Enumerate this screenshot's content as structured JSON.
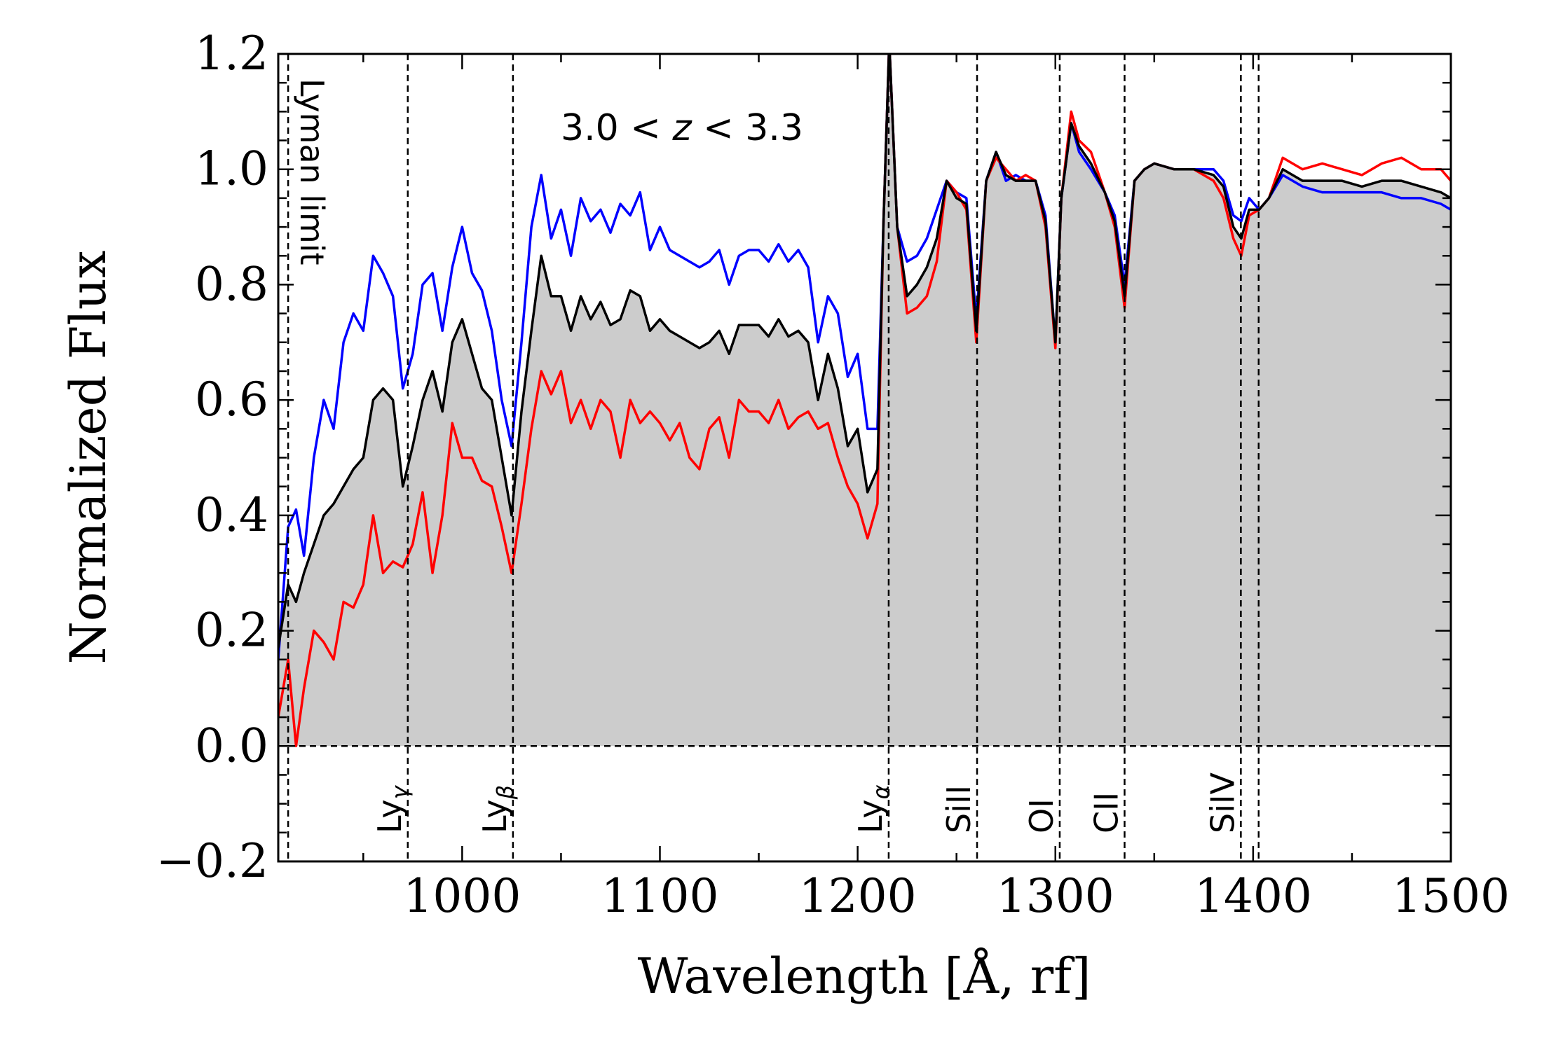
{
  "chart_data": {
    "type": "line",
    "xlabel": "Wavelength [Å, rf]",
    "ylabel": "Normalized Flux",
    "xlim": [
      907,
      1500
    ],
    "ylim": [
      -0.2,
      1.2
    ],
    "xticks": [
      1000,
      1100,
      1200,
      1300,
      1400,
      1500
    ],
    "yticks": [
      -0.2,
      0.0,
      0.2,
      0.4,
      0.6,
      0.8,
      1.0,
      1.2
    ],
    "xtick_labels": [
      "1000",
      "1100",
      "1200",
      "1300",
      "1400",
      "1500"
    ],
    "ytick_labels": [
      "−0.2",
      "0.0",
      "0.2",
      "0.4",
      "0.6",
      "0.8",
      "1.0",
      "1.2"
    ],
    "annotation": {
      "text_pre": "3.0 < ",
      "text_var": "z",
      "text_post": " < 3.3"
    },
    "grid": false,
    "fill_color": "#cccccc",
    "zero_line": 0.0,
    "lines": [
      {
        "x": 912,
        "label": "Lyman limit",
        "sub": ""
      },
      {
        "x": 972.5,
        "label": "Ly",
        "sub": "γ"
      },
      {
        "x": 1025.7,
        "label": "Ly",
        "sub": "β"
      },
      {
        "x": 1215.7,
        "label": "Ly",
        "sub": "α"
      },
      {
        "x": 1260.4,
        "label": "SiII",
        "sub": ""
      },
      {
        "x": 1302.2,
        "label": "OI",
        "sub": ""
      },
      {
        "x": 1335.0,
        "label": "CII",
        "sub": ""
      },
      {
        "x": 1393.8,
        "label": "SiIV",
        "sub": ""
      },
      {
        "x": 1402.8,
        "label": "",
        "sub": ""
      }
    ],
    "series": [
      {
        "color": "#0000ff",
        "x": [
          907,
          912,
          916,
          920,
          925,
          930,
          935,
          940,
          945,
          950,
          955,
          960,
          965,
          970,
          975,
          980,
          985,
          990,
          995,
          1000,
          1005,
          1010,
          1015,
          1020,
          1025,
          1030,
          1035,
          1040,
          1045,
          1050,
          1055,
          1060,
          1065,
          1070,
          1075,
          1080,
          1085,
          1090,
          1095,
          1100,
          1105,
          1110,
          1115,
          1120,
          1125,
          1130,
          1135,
          1140,
          1145,
          1150,
          1155,
          1160,
          1165,
          1170,
          1175,
          1180,
          1185,
          1190,
          1195,
          1200,
          1205,
          1210,
          1213,
          1216,
          1220,
          1225,
          1230,
          1235,
          1240,
          1245,
          1250,
          1255,
          1260,
          1265,
          1270,
          1275,
          1280,
          1285,
          1290,
          1295,
          1300,
          1303,
          1308,
          1312,
          1318,
          1325,
          1330,
          1335,
          1340,
          1345,
          1350,
          1360,
          1370,
          1380,
          1385,
          1390,
          1394,
          1398,
          1403,
          1408,
          1415,
          1425,
          1435,
          1445,
          1455,
          1465,
          1475,
          1485,
          1495,
          1500
        ],
        "y": [
          0.15,
          0.38,
          0.41,
          0.33,
          0.5,
          0.6,
          0.55,
          0.7,
          0.75,
          0.72,
          0.85,
          0.82,
          0.78,
          0.62,
          0.68,
          0.8,
          0.82,
          0.72,
          0.83,
          0.9,
          0.82,
          0.79,
          0.72,
          0.6,
          0.52,
          0.7,
          0.9,
          0.99,
          0.88,
          0.93,
          0.85,
          0.95,
          0.91,
          0.93,
          0.89,
          0.94,
          0.92,
          0.96,
          0.86,
          0.9,
          0.86,
          0.85,
          0.84,
          0.83,
          0.84,
          0.86,
          0.8,
          0.85,
          0.86,
          0.86,
          0.84,
          0.87,
          0.84,
          0.86,
          0.83,
          0.7,
          0.78,
          0.75,
          0.64,
          0.68,
          0.55,
          0.55,
          0.9,
          1.22,
          0.9,
          0.84,
          0.85,
          0.88,
          0.93,
          0.98,
          0.96,
          0.95,
          0.74,
          0.98,
          1.03,
          0.98,
          0.99,
          0.98,
          0.98,
          0.92,
          0.7,
          0.95,
          1.08,
          1.03,
          1.0,
          0.96,
          0.92,
          0.8,
          0.98,
          1.0,
          1.01,
          1.0,
          1.0,
          1.0,
          0.98,
          0.92,
          0.91,
          0.95,
          0.93,
          0.95,
          0.99,
          0.97,
          0.96,
          0.96,
          0.96,
          0.96,
          0.95,
          0.95,
          0.94,
          0.93
        ]
      },
      {
        "color": "#ff0000",
        "x": [
          907,
          912,
          916,
          920,
          925,
          930,
          935,
          940,
          945,
          950,
          955,
          960,
          965,
          970,
          975,
          980,
          985,
          990,
          995,
          1000,
          1005,
          1010,
          1015,
          1020,
          1025,
          1030,
          1035,
          1040,
          1045,
          1050,
          1055,
          1060,
          1065,
          1070,
          1075,
          1080,
          1085,
          1090,
          1095,
          1100,
          1105,
          1110,
          1115,
          1120,
          1125,
          1130,
          1135,
          1140,
          1145,
          1150,
          1155,
          1160,
          1165,
          1170,
          1175,
          1180,
          1185,
          1190,
          1195,
          1200,
          1205,
          1210,
          1213,
          1216,
          1220,
          1225,
          1230,
          1235,
          1240,
          1245,
          1250,
          1255,
          1260,
          1265,
          1270,
          1275,
          1280,
          1285,
          1290,
          1295,
          1300,
          1303,
          1308,
          1312,
          1318,
          1325,
          1330,
          1335,
          1340,
          1345,
          1350,
          1360,
          1370,
          1380,
          1385,
          1390,
          1394,
          1398,
          1403,
          1408,
          1415,
          1425,
          1435,
          1445,
          1455,
          1465,
          1475,
          1485,
          1495,
          1500
        ],
        "y": [
          0.05,
          0.15,
          0.0,
          0.1,
          0.2,
          0.18,
          0.15,
          0.25,
          0.24,
          0.28,
          0.4,
          0.3,
          0.32,
          0.31,
          0.35,
          0.44,
          0.3,
          0.4,
          0.56,
          0.5,
          0.5,
          0.46,
          0.45,
          0.38,
          0.3,
          0.42,
          0.55,
          0.65,
          0.61,
          0.65,
          0.56,
          0.6,
          0.55,
          0.6,
          0.58,
          0.5,
          0.6,
          0.56,
          0.58,
          0.56,
          0.53,
          0.56,
          0.5,
          0.48,
          0.55,
          0.57,
          0.5,
          0.6,
          0.58,
          0.58,
          0.56,
          0.6,
          0.55,
          0.57,
          0.58,
          0.55,
          0.56,
          0.5,
          0.45,
          0.42,
          0.36,
          0.42,
          0.9,
          1.22,
          0.9,
          0.75,
          0.76,
          0.78,
          0.84,
          0.98,
          0.96,
          0.93,
          0.7,
          0.98,
          1.02,
          1.0,
          0.98,
          0.99,
          0.98,
          0.9,
          0.69,
          0.95,
          1.1,
          1.05,
          1.03,
          0.96,
          0.9,
          0.76,
          0.98,
          1.0,
          1.01,
          1.0,
          1.0,
          0.98,
          0.95,
          0.88,
          0.85,
          0.92,
          0.93,
          0.95,
          1.02,
          1.0,
          1.01,
          1.0,
          0.99,
          1.01,
          1.02,
          1.0,
          1.0,
          0.98
        ]
      },
      {
        "color": "#000000",
        "x": [
          907,
          912,
          916,
          920,
          925,
          930,
          935,
          940,
          945,
          950,
          955,
          960,
          965,
          970,
          975,
          980,
          985,
          990,
          995,
          1000,
          1005,
          1010,
          1015,
          1020,
          1025,
          1030,
          1035,
          1040,
          1045,
          1050,
          1055,
          1060,
          1065,
          1070,
          1075,
          1080,
          1085,
          1090,
          1095,
          1100,
          1105,
          1110,
          1115,
          1120,
          1125,
          1130,
          1135,
          1140,
          1145,
          1150,
          1155,
          1160,
          1165,
          1170,
          1175,
          1180,
          1185,
          1190,
          1195,
          1200,
          1205,
          1210,
          1213,
          1216,
          1220,
          1225,
          1230,
          1235,
          1240,
          1245,
          1250,
          1255,
          1260,
          1265,
          1270,
          1275,
          1280,
          1285,
          1290,
          1295,
          1300,
          1303,
          1308,
          1312,
          1318,
          1325,
          1330,
          1335,
          1340,
          1345,
          1350,
          1360,
          1370,
          1380,
          1385,
          1390,
          1394,
          1398,
          1403,
          1408,
          1415,
          1425,
          1435,
          1445,
          1455,
          1465,
          1475,
          1485,
          1495,
          1500
        ],
        "y": [
          0.17,
          0.28,
          0.25,
          0.3,
          0.35,
          0.4,
          0.42,
          0.45,
          0.48,
          0.5,
          0.6,
          0.62,
          0.6,
          0.45,
          0.52,
          0.6,
          0.65,
          0.58,
          0.7,
          0.74,
          0.68,
          0.62,
          0.6,
          0.5,
          0.4,
          0.58,
          0.72,
          0.85,
          0.78,
          0.78,
          0.72,
          0.78,
          0.74,
          0.77,
          0.73,
          0.74,
          0.79,
          0.78,
          0.72,
          0.74,
          0.72,
          0.71,
          0.7,
          0.69,
          0.7,
          0.72,
          0.68,
          0.73,
          0.73,
          0.73,
          0.71,
          0.74,
          0.71,
          0.72,
          0.7,
          0.6,
          0.68,
          0.62,
          0.52,
          0.55,
          0.44,
          0.48,
          0.9,
          1.22,
          0.9,
          0.78,
          0.8,
          0.83,
          0.88,
          0.98,
          0.95,
          0.94,
          0.72,
          0.98,
          1.03,
          0.99,
          0.98,
          0.98,
          0.98,
          0.91,
          0.7,
          0.95,
          1.08,
          1.04,
          1.01,
          0.96,
          0.91,
          0.78,
          0.98,
          1.0,
          1.01,
          1.0,
          1.0,
          0.99,
          0.97,
          0.9,
          0.88,
          0.93,
          0.93,
          0.95,
          1.0,
          0.98,
          0.98,
          0.98,
          0.97,
          0.98,
          0.98,
          0.97,
          0.96,
          0.95
        ]
      }
    ]
  }
}
